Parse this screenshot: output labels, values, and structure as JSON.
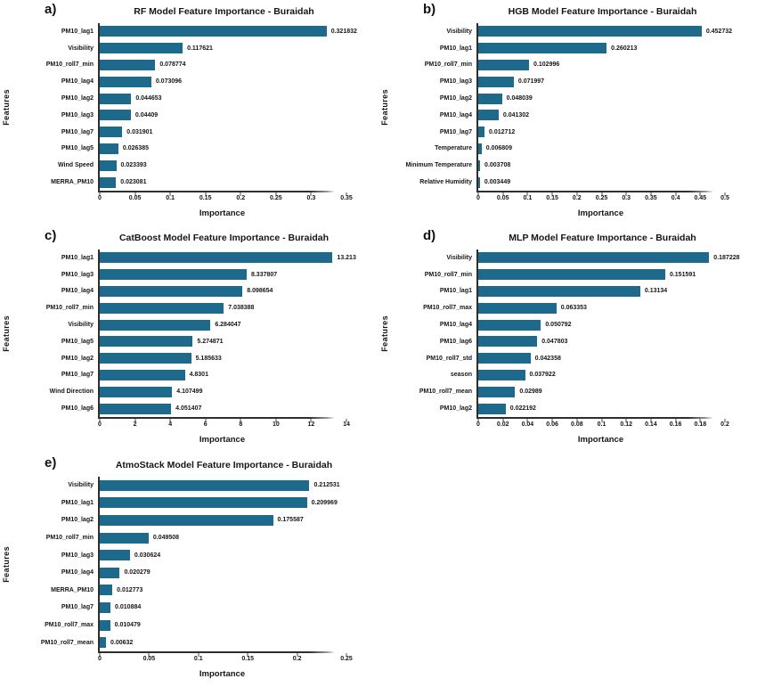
{
  "figure": {
    "background": "#ffffff",
    "bar_color": "#1d6a8c",
    "axis_color": "#2e2e2e",
    "text_color": "#151515"
  },
  "chart_data": [
    {
      "type": "bar",
      "orientation": "horizontal",
      "panel": "a)",
      "title": "RF Model Feature Importance - Buraidah",
      "xlabel": "Importance",
      "ylabel": "Features",
      "legend": "none",
      "grid": false,
      "categories": [
        "PM10_lag1",
        "Visibility",
        "PM10_roll7_min",
        "PM10_lag4",
        "PM10_lag2",
        "PM10_lag3",
        "PM10_lag7",
        "PM10_lag5",
        "Wind Speed",
        "MERRA_PM10"
      ],
      "values": [
        0.321832,
        0.117621,
        0.078774,
        0.073096,
        0.044653,
        0.04409,
        0.031901,
        0.026385,
        0.023393,
        0.023081
      ],
      "value_labels": [
        "0.321832",
        "0.117621",
        "0.078774",
        "0.073096",
        "0.044653",
        "0.04409",
        "0.031901",
        "0.026385",
        "0.023393",
        "0.023081"
      ],
      "xlim": [
        0,
        0.35
      ],
      "xtick_values": [
        0,
        0.05,
        0.1,
        0.15,
        0.2,
        0.25,
        0.3,
        0.35
      ],
      "xtick_labels": [
        "0",
        "0.05",
        "0.1",
        "0.15",
        "0.2",
        "0.25",
        "0.3",
        "0.35"
      ]
    },
    {
      "type": "bar",
      "orientation": "horizontal",
      "panel": "b)",
      "title": "HGB Model Feature Importance - Buraidah",
      "xlabel": "Importance",
      "ylabel": "Features",
      "legend": "none",
      "grid": false,
      "categories": [
        "Visibility",
        "PM10_lag1",
        "PM10_roll7_min",
        "PM10_lag3",
        "PM10_lag2",
        "PM10_lag4",
        "PM10_lag7",
        "Temperature",
        "Minimum Temperature",
        "Relative Humidity"
      ],
      "values": [
        0.452732,
        0.260213,
        0.102996,
        0.071997,
        0.048039,
        0.041302,
        0.012712,
        0.006809,
        0.003708,
        0.003449
      ],
      "value_labels": [
        "0.452732",
        "0.260213",
        "0.102996",
        "0.071997",
        "0.048039",
        "0.041302",
        "0.012712",
        "0.006809",
        "0.003708",
        "0.003449"
      ],
      "xlim": [
        0,
        0.5
      ],
      "xtick_values": [
        0,
        0.05,
        0.1,
        0.15,
        0.2,
        0.25,
        0.3,
        0.35,
        0.4,
        0.45,
        0.5
      ],
      "xtick_labels": [
        "0",
        "0.05",
        "0.1",
        "0.15",
        "0.2",
        "0.25",
        "0.3",
        "0.35",
        "0.4",
        "0.45",
        "0.5"
      ]
    },
    {
      "type": "bar",
      "orientation": "horizontal",
      "panel": "c)",
      "title": "CatBoost Model Feature Importance - Buraidah",
      "xlabel": "Importance",
      "ylabel": "Features",
      "legend": "none",
      "grid": false,
      "categories": [
        "PM10_lag1",
        "PM10_lag3",
        "PM10_lag4",
        "PM10_roll7_min",
        "Visibility",
        "PM10_lag5",
        "PM10_lag2",
        "PM10_lag7",
        "Wind Direction",
        "PM10_lag6"
      ],
      "values": [
        13.213,
        8.337807,
        8.098654,
        7.038388,
        6.284047,
        5.274871,
        5.185633,
        4.8301,
        4.107499,
        4.051407
      ],
      "value_labels": [
        "13.213",
        "8.337807",
        "8.098654",
        "7.038388",
        "6.284047",
        "5.274871",
        "5.185633",
        "4.8301",
        "4.107499",
        "4.051407"
      ],
      "xlim": [
        0,
        14
      ],
      "xtick_values": [
        0,
        2,
        4,
        6,
        8,
        10,
        12,
        14
      ],
      "xtick_labels": [
        "0",
        "2",
        "4",
        "6",
        "8",
        "10",
        "12",
        "14"
      ]
    },
    {
      "type": "bar",
      "orientation": "horizontal",
      "panel": "d)",
      "title": "MLP Model Feature Importance - Buraidah",
      "xlabel": "Importance",
      "ylabel": "Features",
      "legend": "none",
      "grid": false,
      "categories": [
        "Visibility",
        "PM10_roll7_min",
        "PM10_lag1",
        "PM10_roll7_max",
        "PM10_lag4",
        "PM10_lag6",
        "PM10_roll7_std",
        "season",
        "PM10_roll7_mean",
        "PM10_lag2"
      ],
      "values": [
        0.187228,
        0.151591,
        0.13134,
        0.063353,
        0.050792,
        0.047803,
        0.042358,
        0.037922,
        0.02989,
        0.022192
      ],
      "value_labels": [
        "0.187228",
        "0.151591",
        "0.13134",
        "0.063353",
        "0.050792",
        "0.047803",
        "0.042358",
        "0.037922",
        "0.02989",
        "0.022192"
      ],
      "xlim": [
        0,
        0.2
      ],
      "xtick_values": [
        0,
        0.02,
        0.04,
        0.06,
        0.08,
        0.1,
        0.12,
        0.14,
        0.16,
        0.18,
        0.2
      ],
      "xtick_labels": [
        "0",
        "0.02",
        "0.04",
        "0.06",
        "0.08",
        "0.1",
        "0.12",
        "0.14",
        "0.16",
        "0.18",
        "0.2"
      ]
    },
    {
      "type": "bar",
      "orientation": "horizontal",
      "panel": "e)",
      "title": "AtmoStack Model Feature Importance - Buraidah",
      "xlabel": "Importance",
      "ylabel": "Features",
      "legend": "none",
      "grid": false,
      "categories": [
        "Visibility",
        "PM10_lag1",
        "PM10_lag2",
        "PM10_roll7_min",
        "PM10_lag3",
        "PM10_lag4",
        "MERRA_PM10",
        "PM10_lag7",
        "PM10_roll7_max",
        "PM10_roll7_mean"
      ],
      "values": [
        0.212531,
        0.209969,
        0.175587,
        0.049508,
        0.030624,
        0.020279,
        0.012773,
        0.010884,
        0.010479,
        0.00632
      ],
      "value_labels": [
        "0.212531",
        "0.209969",
        "0.175587",
        "0.049508",
        "0.030624",
        "0.020279",
        "0.012773",
        "0.010884",
        "0.010479",
        "0.00632"
      ],
      "xlim": [
        0,
        0.25
      ],
      "xtick_values": [
        0,
        0.05,
        0.1,
        0.15,
        0.2,
        0.25
      ],
      "xtick_labels": [
        "0",
        "0.05",
        "0.1",
        "0.15",
        "0.2",
        "0.25"
      ]
    }
  ]
}
